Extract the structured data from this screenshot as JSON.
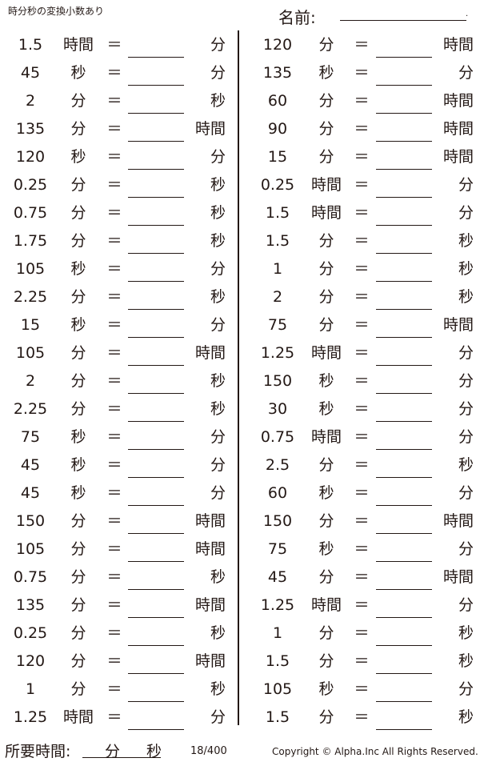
{
  "header": {
    "title": "時分秒の変換小数あり",
    "name_label": "名前:",
    "name_end": "."
  },
  "equals": "＝",
  "left_rows": [
    [
      "1.5",
      "時間",
      "分"
    ],
    [
      "45",
      "秒",
      "分"
    ],
    [
      "2",
      "分",
      "秒"
    ],
    [
      "135",
      "分",
      "時間"
    ],
    [
      "120",
      "秒",
      "分"
    ],
    [
      "0.25",
      "分",
      "秒"
    ],
    [
      "0.75",
      "分",
      "秒"
    ],
    [
      "1.75",
      "分",
      "秒"
    ],
    [
      "105",
      "秒",
      "分"
    ],
    [
      "2.25",
      "分",
      "秒"
    ],
    [
      "15",
      "秒",
      "分"
    ],
    [
      "105",
      "分",
      "時間"
    ],
    [
      "2",
      "分",
      "秒"
    ],
    [
      "2.25",
      "分",
      "秒"
    ],
    [
      "75",
      "秒",
      "分"
    ],
    [
      "45",
      "秒",
      "分"
    ],
    [
      "45",
      "秒",
      "分"
    ],
    [
      "150",
      "分",
      "時間"
    ],
    [
      "105",
      "分",
      "時間"
    ],
    [
      "0.75",
      "分",
      "秒"
    ],
    [
      "135",
      "分",
      "時間"
    ],
    [
      "0.25",
      "分",
      "秒"
    ],
    [
      "120",
      "分",
      "時間"
    ],
    [
      "1",
      "分",
      "秒"
    ],
    [
      "1.25",
      "時間",
      "分"
    ]
  ],
  "right_rows": [
    [
      "120",
      "分",
      "時間"
    ],
    [
      "135",
      "秒",
      "分"
    ],
    [
      "60",
      "分",
      "時間"
    ],
    [
      "90",
      "分",
      "時間"
    ],
    [
      "15",
      "分",
      "時間"
    ],
    [
      "0.25",
      "時間",
      "分"
    ],
    [
      "1.5",
      "時間",
      "分"
    ],
    [
      "1.5",
      "分",
      "秒"
    ],
    [
      "1",
      "分",
      "秒"
    ],
    [
      "2",
      "分",
      "秒"
    ],
    [
      "75",
      "分",
      "時間"
    ],
    [
      "1.25",
      "時間",
      "分"
    ],
    [
      "150",
      "秒",
      "分"
    ],
    [
      "30",
      "秒",
      "分"
    ],
    [
      "0.75",
      "時間",
      "分"
    ],
    [
      "2.5",
      "分",
      "秒"
    ],
    [
      "60",
      "秒",
      "分"
    ],
    [
      "150",
      "分",
      "時間"
    ],
    [
      "75",
      "秒",
      "分"
    ],
    [
      "45",
      "分",
      "時間"
    ],
    [
      "1.25",
      "時間",
      "分"
    ],
    [
      "1",
      "分",
      "秒"
    ],
    [
      "1.5",
      "分",
      "秒"
    ],
    [
      "105",
      "秒",
      "分"
    ],
    [
      "1.5",
      "分",
      "秒"
    ]
  ],
  "footer": {
    "time_label": "所要時間:",
    "minutes_unit": "分",
    "seconds_unit": "秒",
    "page": "18/400",
    "copyright": "Copyright © Alpha.Inc All Rights Reserved."
  }
}
